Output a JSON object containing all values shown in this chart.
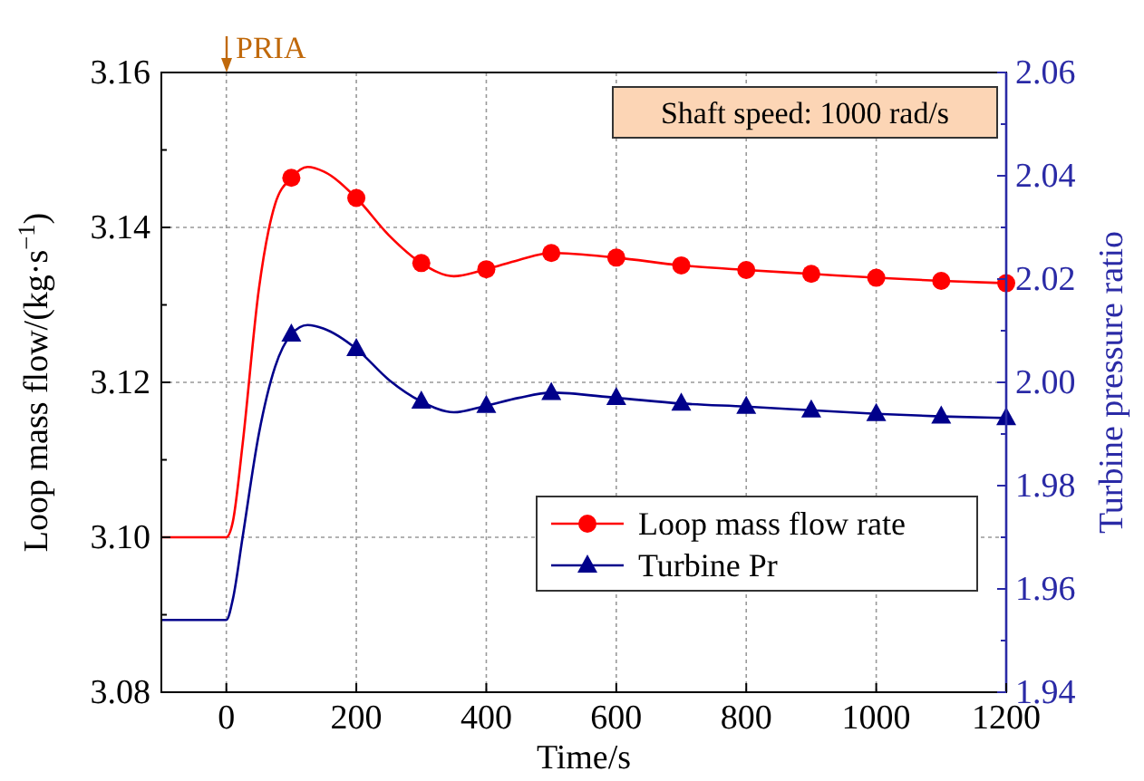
{
  "chart_data": {
    "type": "line",
    "xlabel": "Time/s",
    "ylabel": "Loop mass flow/(kg·s$^{−1}$)",
    "y2label": "Turbine pressure ratio",
    "xlim": [
      -100,
      1200
    ],
    "xticks": [
      0,
      200,
      400,
      600,
      800,
      1000,
      1200
    ],
    "ylim": [
      3.08,
      3.16
    ],
    "yticks": [
      {
        "value": 3.08,
        "label": "3.08"
      },
      {
        "value": 3.09,
        "label": null
      },
      {
        "value": 3.1,
        "label": "3.10"
      },
      {
        "value": 3.11,
        "label": null
      },
      {
        "value": 3.12,
        "label": "3.12"
      },
      {
        "value": 3.13,
        "label": null
      },
      {
        "value": 3.14,
        "label": "3.14"
      },
      {
        "value": 3.15,
        "label": null
      },
      {
        "value": 3.16,
        "label": "3.16"
      }
    ],
    "y2lim": [
      1.94,
      2.06
    ],
    "y2ticks": [
      {
        "value": 1.94,
        "label": "1.94"
      },
      {
        "value": 1.95,
        "label": null
      },
      {
        "value": 1.96,
        "label": "1.96"
      },
      {
        "value": 1.97,
        "label": null
      },
      {
        "value": 1.98,
        "label": "1.98"
      },
      {
        "value": 1.99,
        "label": null
      },
      {
        "value": 2.0,
        "label": "2.00"
      },
      {
        "value": 2.01,
        "label": null
      },
      {
        "value": 2.02,
        "label": "2.02"
      },
      {
        "value": 2.03,
        "label": null
      },
      {
        "value": 2.04,
        "label": "2.04"
      },
      {
        "value": 2.05,
        "label": null
      },
      {
        "value": 2.06,
        "label": "2.06"
      }
    ],
    "grid": true,
    "legend": "right",
    "annotations": [
      "PRIA",
      "Shaft speed: 1000 rad/s"
    ],
    "series": [
      {
        "color": "#ff0000",
        "marker": "none",
        "x": [
          -100,
          0,
          10,
          25,
          50,
          75,
          100,
          125,
          150,
          200,
          250,
          300,
          350,
          400,
          450,
          500,
          600,
          700,
          800,
          900,
          1000,
          1100,
          1200
        ],
        "values": [
          3.1,
          3.1,
          3.102,
          3.112,
          3.132,
          3.143,
          3.1464,
          3.1478,
          3.1472,
          3.1438,
          3.139,
          3.1354,
          3.1337,
          3.1346,
          3.1358,
          3.1367,
          3.1361,
          3.1351,
          3.1345,
          3.134,
          3.1335,
          3.1331,
          3.1328
        ]
      },
      {
        "type": "scatter",
        "name": "Loop mass flow rate",
        "color": "#ff0000",
        "marker": "circle",
        "x": [
          100,
          200,
          300,
          400,
          500,
          600,
          700,
          800,
          900,
          1000,
          1100,
          1200
        ],
        "values": [
          3.1464,
          3.1438,
          3.1354,
          3.1346,
          3.1367,
          3.1361,
          3.1351,
          3.1345,
          3.134,
          3.1335,
          3.1331,
          3.1328
        ]
      },
      {
        "color": "#00008b",
        "axis": "y2",
        "marker": "none",
        "x": [
          -100,
          0,
          10,
          25,
          50,
          75,
          100,
          125,
          150,
          200,
          250,
          300,
          350,
          400,
          450,
          500,
          600,
          700,
          800,
          900,
          1000,
          1100,
          1200
        ],
        "values": [
          1.954,
          1.954,
          1.958,
          1.97,
          1.99,
          2.003,
          2.0093,
          2.0111,
          2.0104,
          2.0065,
          2.0005,
          1.9963,
          1.9942,
          1.9955,
          1.997,
          1.998,
          1.997,
          1.9959,
          1.9953,
          1.9946,
          1.9939,
          1.9934,
          1.9931
        ]
      },
      {
        "type": "scatter",
        "name": "Turbine Pr",
        "color": "#00008b",
        "axis": "y2",
        "marker": "triangle",
        "x": [
          100,
          200,
          300,
          400,
          500,
          600,
          700,
          800,
          900,
          1000,
          1100,
          1200
        ],
        "values": [
          2.0093,
          2.0065,
          1.9963,
          1.9955,
          1.998,
          1.997,
          1.9959,
          1.9953,
          1.9946,
          1.9939,
          1.9934,
          1.9931
        ]
      }
    ]
  }
}
